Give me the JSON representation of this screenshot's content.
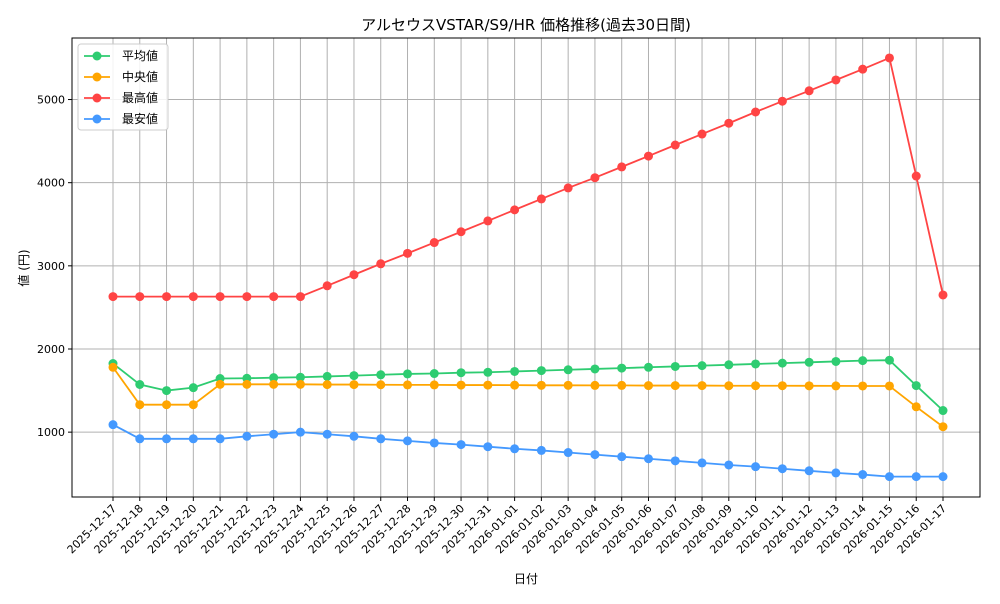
{
  "chart_data": {
    "type": "line",
    "title": "アルセウスVSTAR/S9/HR 価格推移(過去30日間)",
    "xlabel": "日付",
    "ylabel": "値 (円)",
    "ylim": [
      220,
      5740
    ],
    "yticks": [
      1000,
      2000,
      3000,
      4000,
      5000
    ],
    "grid": true,
    "legend_position": "top-left",
    "x": [
      "2025-12-17",
      "2025-12-18",
      "2025-12-19",
      "2025-12-20",
      "2025-12-21",
      "2025-12-22",
      "2025-12-23",
      "2025-12-24",
      "2025-12-25",
      "2025-12-26",
      "2025-12-27",
      "2025-12-28",
      "2025-12-29",
      "2025-12-30",
      "2025-12-31",
      "2026-01-01",
      "2026-01-02",
      "2026-01-03",
      "2026-01-04",
      "2026-01-05",
      "2026-01-06",
      "2026-01-07",
      "2026-01-08",
      "2026-01-09",
      "2026-01-10",
      "2026-01-11",
      "2026-01-12",
      "2026-01-13",
      "2026-01-14",
      "2026-01-15",
      "2026-01-16",
      "2026-01-17"
    ],
    "series": [
      {
        "name": "平均値",
        "color": "#2ecc71",
        "values": [
          1825,
          1573,
          1500,
          1535,
          1645,
          1648,
          1655,
          1660,
          1670,
          1680,
          1690,
          1700,
          1705,
          1715,
          1720,
          1730,
          1740,
          1750,
          1760,
          1770,
          1780,
          1790,
          1800,
          1810,
          1820,
          1830,
          1840,
          1850,
          1860,
          1865,
          1560,
          1260
        ]
      },
      {
        "name": "中央値",
        "color": "#ffa500",
        "values": [
          1780,
          1330,
          1330,
          1330,
          1575,
          1575,
          1575,
          1575,
          1572,
          1572,
          1570,
          1568,
          1568,
          1566,
          1566,
          1565,
          1563,
          1563,
          1562,
          1562,
          1560,
          1560,
          1560,
          1558,
          1558,
          1558,
          1557,
          1556,
          1555,
          1555,
          1305,
          1065
        ]
      },
      {
        "name": "最高値",
        "color": "#ff4444",
        "values": [
          2630,
          2630,
          2630,
          2630,
          2630,
          2630,
          2630,
          2630,
          2760,
          2893,
          3025,
          3150,
          3280,
          3410,
          3540,
          3673,
          3805,
          3937,
          4060,
          4190,
          4320,
          4453,
          4585,
          4715,
          4850,
          4980,
          5105,
          5235,
          5365,
          5500,
          4080,
          2650
        ]
      },
      {
        "name": "最安値",
        "color": "#4499ff",
        "values": [
          1090,
          920,
          920,
          920,
          920,
          950,
          975,
          1000,
          975,
          950,
          920,
          895,
          870,
          850,
          825,
          800,
          780,
          755,
          730,
          705,
          680,
          655,
          630,
          605,
          585,
          560,
          535,
          510,
          490,
          465,
          465,
          465
        ]
      }
    ]
  }
}
